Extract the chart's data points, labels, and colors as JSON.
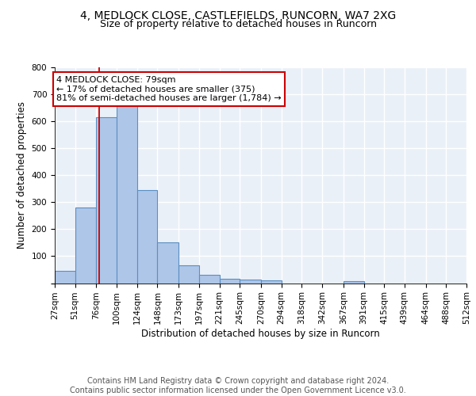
{
  "title1": "4, MEDLOCK CLOSE, CASTLEFIELDS, RUNCORN, WA7 2XG",
  "title2": "Size of property relative to detached houses in Runcorn",
  "xlabel": "Distribution of detached houses by size in Runcorn",
  "ylabel": "Number of detached properties",
  "bar_edges": [
    27,
    51,
    76,
    100,
    124,
    148,
    173,
    197,
    221,
    245,
    270,
    294,
    318,
    342,
    367,
    391,
    415,
    439,
    464,
    488,
    512
  ],
  "bar_heights": [
    45,
    280,
    615,
    660,
    345,
    150,
    67,
    30,
    17,
    12,
    10,
    0,
    0,
    0,
    8,
    0,
    0,
    0,
    0,
    0
  ],
  "bar_color": "#aec6e8",
  "bar_edge_color": "#5a8fc2",
  "background_color": "#eaf0f8",
  "grid_color": "#ffffff",
  "vline_x": 79,
  "vline_color": "#cc0000",
  "annotation_text": "4 MEDLOCK CLOSE: 79sqm\n← 17% of detached houses are smaller (375)\n81% of semi-detached houses are larger (1,784) →",
  "annotation_box_color": "#ffffff",
  "annotation_box_edge_color": "#cc0000",
  "ylim": [
    0,
    800
  ],
  "yticks": [
    0,
    100,
    200,
    300,
    400,
    500,
    600,
    700,
    800
  ],
  "tick_labels": [
    "27sqm",
    "51sqm",
    "76sqm",
    "100sqm",
    "124sqm",
    "148sqm",
    "173sqm",
    "197sqm",
    "221sqm",
    "245sqm",
    "270sqm",
    "294sqm",
    "318sqm",
    "342sqm",
    "367sqm",
    "391sqm",
    "415sqm",
    "439sqm",
    "464sqm",
    "488sqm",
    "512sqm"
  ],
  "footer_text": "Contains HM Land Registry data © Crown copyright and database right 2024.\nContains public sector information licensed under the Open Government Licence v3.0.",
  "title1_fontsize": 10,
  "title2_fontsize": 9,
  "axis_label_fontsize": 8.5,
  "tick_fontsize": 7.5,
  "footer_fontsize": 7,
  "annot_fontsize": 8
}
